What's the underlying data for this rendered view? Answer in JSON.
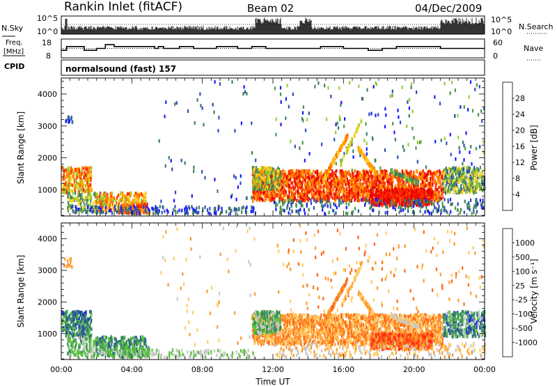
{
  "header": {
    "station": "Rankin Inlet (fitACF)",
    "beam": "Beam 02",
    "date": "04/Dec/2009"
  },
  "labels": {
    "nsky": "N.Sky",
    "nsearch": "N.Search",
    "freq_top": "Freq.",
    "freq_unit": "[MHz]",
    "nave": "Nave",
    "cpid": "CPID",
    "cpid_value": "normalsound (fast) 157",
    "xlabel": "Time UT"
  },
  "colors": {
    "power": [
      "#1a1aff",
      "#2d4fb8",
      "#3f7f5f",
      "#4c9a4c",
      "#9ccc33",
      "#ffd21a",
      "#ff9900",
      "#ff6a00",
      "#ff2a00",
      "#e60000"
    ],
    "velocity": [
      "#2140b8",
      "#2f6a8a",
      "#3a8a5a",
      "#56c23c",
      "#c8c8c8",
      "#ffcc66",
      "#ff9a2a",
      "#ff6a1a",
      "#ff2a1a",
      "#e00000"
    ]
  },
  "chart_data": [
    {
      "type": "line",
      "panel": "noise",
      "left_axis_label": "N.Sky",
      "right_axis_label": "N.Search",
      "left_ticks": [
        "10^5",
        "10^0"
      ],
      "right_ticks": [
        "10^5",
        "10^0"
      ],
      "xlim": [
        0,
        24
      ]
    },
    {
      "type": "line",
      "panel": "frequency",
      "left_axis_label": "Freq. [MHz]",
      "right_axis_label": "Nave",
      "left_ticks": [
        "18",
        "8"
      ],
      "right_ticks": [
        "60",
        "0"
      ],
      "series": [
        {
          "name": "Freq.",
          "x": [
            0,
            0.3,
            0.3,
            1.3,
            1.3,
            2.0,
            2.0,
            2.5,
            2.5,
            3.0,
            3.0,
            5.3,
            5.3,
            5.5,
            5.5,
            5.8,
            5.8,
            6.7,
            6.7,
            7.5,
            7.5,
            8.8,
            8.8,
            10.0,
            10.0,
            10.8,
            10.8,
            11.6,
            11.6,
            14.7,
            14.7,
            16.0,
            16.0,
            17.4,
            17.4,
            18.2,
            18.2,
            19.0,
            19.0,
            21.5,
            21.5,
            24.0
          ],
          "y": [
            12,
            12,
            14,
            14,
            12,
            12,
            13,
            13,
            15,
            15,
            14,
            14,
            13,
            13,
            14,
            14,
            13,
            13,
            14,
            14,
            13,
            13,
            14,
            14,
            13,
            13,
            14,
            14,
            13,
            13,
            14,
            14,
            13,
            13,
            12,
            12,
            13,
            13,
            14,
            14,
            13,
            13
          ]
        },
        {
          "name": "Nave",
          "x": [
            0,
            24
          ],
          "y": [
            30,
            30
          ]
        }
      ]
    },
    {
      "type": "heatmap",
      "panel": "power",
      "ylabel": "Slant Range [km]",
      "colorbar_label": "Power [dB]",
      "colorbar_ticks": [
        "28",
        "24",
        "20",
        "16",
        "12",
        "8",
        "4"
      ],
      "x_ticks": [
        "00:00",
        "04:00",
        "08:00",
        "12:00",
        "16:00",
        "20:00",
        "00:00"
      ],
      "y_ticks": [
        "1000",
        "2000",
        "3000",
        "4000"
      ],
      "xlim": [
        0,
        24
      ],
      "ylim": [
        180,
        4500
      ]
    },
    {
      "type": "heatmap",
      "panel": "velocity",
      "ylabel": "Slant Range [km]",
      "colorbar_label": "Velocity [m s⁻¹]",
      "colorbar_ticks": [
        "1000",
        "500",
        "100",
        "25",
        "-25",
        "-100",
        "-500",
        "-1000"
      ],
      "x_ticks": [
        "00:00",
        "04:00",
        "08:00",
        "12:00",
        "16:00",
        "20:00",
        "00:00"
      ],
      "y_ticks": [
        "1000",
        "2000",
        "3000",
        "4000"
      ],
      "xlim": [
        0,
        24
      ],
      "ylim": [
        180,
        4500
      ]
    }
  ]
}
